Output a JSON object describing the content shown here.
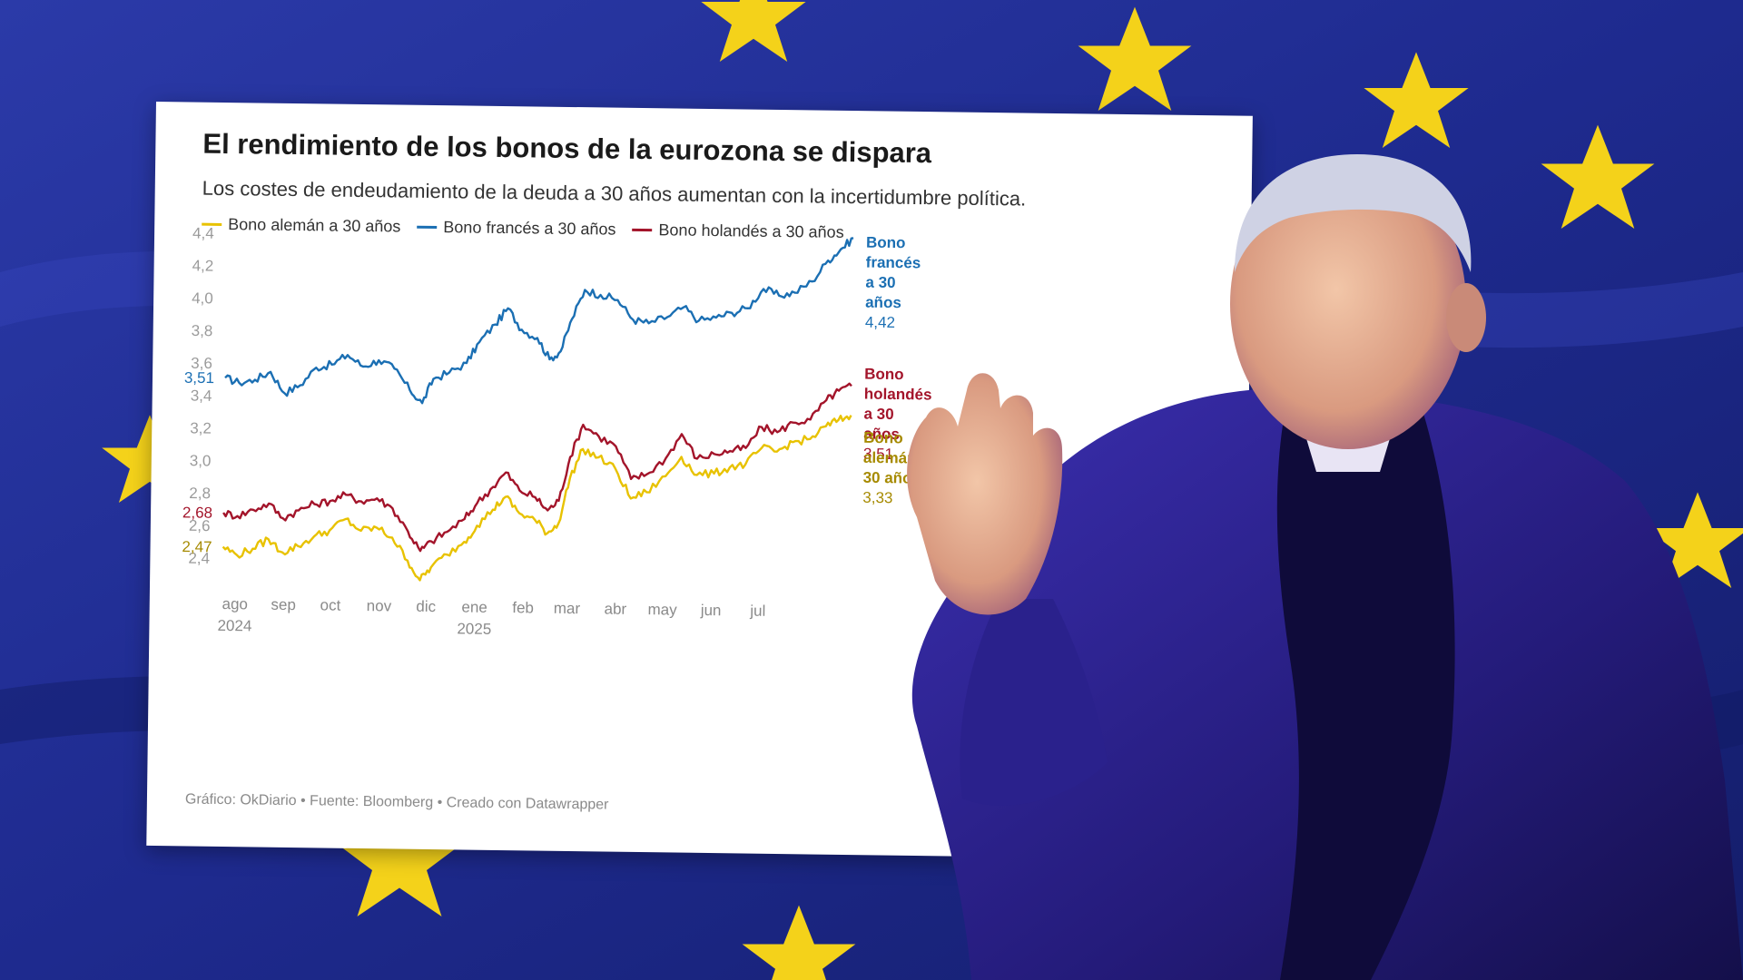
{
  "colors": {
    "german": "#e8c200",
    "german_label": "#a68a00",
    "french": "#1b6fb3",
    "dutch": "#a3142a"
  },
  "background": {
    "subject": "EU flag backdrop with a waving man in a dark suit and scarf"
  },
  "chart_data": {
    "type": "line",
    "title": "El rendimiento de los bonos de la eurozona se dispara",
    "subtitle": "Los costes de endeudamiento de la deuda a 30 años aumentan con la incertidumbre política.",
    "legend": [
      "Bono alemán a 30 años",
      "Bono francés a 30 años",
      "Bono holandés a 30 años"
    ],
    "ylim": [
      2.3,
      4.45
    ],
    "yticks": [
      "4,4",
      "4,2",
      "4,0",
      "3,8",
      "3,6",
      "3,4",
      "3,2",
      "3,0",
      "2,8",
      "2,6",
      "2,4"
    ],
    "ytick_values": [
      4.4,
      4.2,
      4.0,
      3.8,
      3.6,
      3.4,
      3.2,
      3.0,
      2.8,
      2.6,
      2.4
    ],
    "xticks": [
      {
        "label": "ago",
        "year": "2024"
      },
      {
        "label": "sep",
        "year": ""
      },
      {
        "label": "oct",
        "year": ""
      },
      {
        "label": "nov",
        "year": ""
      },
      {
        "label": "dic",
        "year": ""
      },
      {
        "label": "ene",
        "year": "2025"
      },
      {
        "label": "feb",
        "year": ""
      },
      {
        "label": "mar",
        "year": ""
      },
      {
        "label": "abr",
        "year": ""
      },
      {
        "label": "may",
        "year": ""
      },
      {
        "label": "jun",
        "year": ""
      },
      {
        "label": "jul",
        "year": ""
      }
    ],
    "x_range": [
      "2024-08-01",
      "2025-09-05"
    ],
    "series": [
      {
        "key": "french",
        "name": "Bono francés a 30 años",
        "points": [
          [
            "2024-08-01",
            3.51
          ],
          [
            "2024-08-10",
            3.48
          ],
          [
            "2024-08-20",
            3.5
          ],
          [
            "2024-08-30",
            3.55
          ],
          [
            "2024-09-08",
            3.42
          ],
          [
            "2024-09-18",
            3.47
          ],
          [
            "2024-09-28",
            3.58
          ],
          [
            "2024-10-08",
            3.6
          ],
          [
            "2024-10-18",
            3.66
          ],
          [
            "2024-10-28",
            3.59
          ],
          [
            "2024-11-07",
            3.63
          ],
          [
            "2024-11-17",
            3.58
          ],
          [
            "2024-11-27",
            3.45
          ],
          [
            "2024-12-05",
            3.37
          ],
          [
            "2024-12-12",
            3.52
          ],
          [
            "2024-12-22",
            3.56
          ],
          [
            "2025-01-02",
            3.62
          ],
          [
            "2025-01-10",
            3.75
          ],
          [
            "2025-01-20",
            3.86
          ],
          [
            "2025-01-28",
            3.96
          ],
          [
            "2025-02-06",
            3.83
          ],
          [
            "2025-02-16",
            3.78
          ],
          [
            "2025-02-24",
            3.65
          ],
          [
            "2025-03-03",
            3.7
          ],
          [
            "2025-03-10",
            3.9
          ],
          [
            "2025-03-18",
            4.08
          ],
          [
            "2025-03-28",
            4.05
          ],
          [
            "2025-04-08",
            4.02
          ],
          [
            "2025-04-18",
            3.9
          ],
          [
            "2025-04-28",
            3.88
          ],
          [
            "2025-05-10",
            3.92
          ],
          [
            "2025-05-20",
            3.98
          ],
          [
            "2025-05-30",
            3.9
          ],
          [
            "2025-06-10",
            3.92
          ],
          [
            "2025-06-20",
            3.95
          ],
          [
            "2025-06-30",
            3.98
          ],
          [
            "2025-07-10",
            4.1
          ],
          [
            "2025-07-20",
            4.06
          ],
          [
            "2025-07-30",
            4.08
          ],
          [
            "2025-08-10",
            4.15
          ],
          [
            "2025-08-20",
            4.28
          ],
          [
            "2025-08-28",
            4.35
          ],
          [
            "2025-09-05",
            4.42
          ]
        ],
        "start_label": "3,51",
        "end_label": [
          "Bono",
          "francés",
          "a 30",
          "años"
        ],
        "end_value": "4,42"
      },
      {
        "key": "dutch",
        "name": "Bono holandés a 30 años",
        "points": [
          [
            "2024-08-01",
            2.68
          ],
          [
            "2024-08-10",
            2.66
          ],
          [
            "2024-08-20",
            2.7
          ],
          [
            "2024-08-30",
            2.74
          ],
          [
            "2024-09-08",
            2.65
          ],
          [
            "2024-09-18",
            2.7
          ],
          [
            "2024-09-28",
            2.74
          ],
          [
            "2024-10-08",
            2.76
          ],
          [
            "2024-10-18",
            2.8
          ],
          [
            "2024-10-28",
            2.76
          ],
          [
            "2024-11-07",
            2.78
          ],
          [
            "2024-11-17",
            2.72
          ],
          [
            "2024-11-27",
            2.58
          ],
          [
            "2024-12-05",
            2.46
          ],
          [
            "2024-12-12",
            2.52
          ],
          [
            "2024-12-22",
            2.58
          ],
          [
            "2025-01-02",
            2.66
          ],
          [
            "2025-01-10",
            2.76
          ],
          [
            "2025-01-20",
            2.86
          ],
          [
            "2025-01-28",
            2.95
          ],
          [
            "2025-02-06",
            2.84
          ],
          [
            "2025-02-16",
            2.8
          ],
          [
            "2025-02-24",
            2.72
          ],
          [
            "2025-03-03",
            2.78
          ],
          [
            "2025-03-10",
            3.05
          ],
          [
            "2025-03-18",
            3.25
          ],
          [
            "2025-03-28",
            3.18
          ],
          [
            "2025-04-08",
            3.12
          ],
          [
            "2025-04-18",
            2.92
          ],
          [
            "2025-04-28",
            2.95
          ],
          [
            "2025-05-10",
            3.05
          ],
          [
            "2025-05-20",
            3.2
          ],
          [
            "2025-05-30",
            3.05
          ],
          [
            "2025-06-10",
            3.08
          ],
          [
            "2025-06-20",
            3.1
          ],
          [
            "2025-06-30",
            3.12
          ],
          [
            "2025-07-10",
            3.25
          ],
          [
            "2025-07-20",
            3.22
          ],
          [
            "2025-07-30",
            3.28
          ],
          [
            "2025-08-10",
            3.3
          ],
          [
            "2025-08-20",
            3.42
          ],
          [
            "2025-08-28",
            3.48
          ],
          [
            "2025-09-05",
            3.51
          ]
        ],
        "start_label": "2,68",
        "end_label": [
          "Bono",
          "holandés",
          "a 30",
          "años"
        ],
        "end_value": "3,51"
      },
      {
        "key": "german",
        "name": "Bono alemán a 30 años",
        "points": [
          [
            "2024-08-01",
            2.47
          ],
          [
            "2024-08-10",
            2.42
          ],
          [
            "2024-08-20",
            2.46
          ],
          [
            "2024-08-30",
            2.52
          ],
          [
            "2024-09-08",
            2.44
          ],
          [
            "2024-09-18",
            2.48
          ],
          [
            "2024-09-28",
            2.54
          ],
          [
            "2024-10-08",
            2.58
          ],
          [
            "2024-10-18",
            2.65
          ],
          [
            "2024-10-28",
            2.58
          ],
          [
            "2024-11-07",
            2.6
          ],
          [
            "2024-11-17",
            2.54
          ],
          [
            "2024-11-27",
            2.4
          ],
          [
            "2024-12-05",
            2.28
          ],
          [
            "2024-12-12",
            2.36
          ],
          [
            "2024-12-22",
            2.44
          ],
          [
            "2025-01-02",
            2.52
          ],
          [
            "2025-01-10",
            2.62
          ],
          [
            "2025-01-20",
            2.72
          ],
          [
            "2025-01-28",
            2.8
          ],
          [
            "2025-02-06",
            2.7
          ],
          [
            "2025-02-16",
            2.66
          ],
          [
            "2025-02-24",
            2.58
          ],
          [
            "2025-03-03",
            2.64
          ],
          [
            "2025-03-10",
            2.92
          ],
          [
            "2025-03-18",
            3.1
          ],
          [
            "2025-03-28",
            3.05
          ],
          [
            "2025-04-08",
            2.98
          ],
          [
            "2025-04-18",
            2.8
          ],
          [
            "2025-04-28",
            2.84
          ],
          [
            "2025-05-10",
            2.94
          ],
          [
            "2025-05-20",
            3.06
          ],
          [
            "2025-05-30",
            2.95
          ],
          [
            "2025-06-10",
            2.96
          ],
          [
            "2025-06-20",
            3.0
          ],
          [
            "2025-06-30",
            3.02
          ],
          [
            "2025-07-10",
            3.12
          ],
          [
            "2025-07-20",
            3.1
          ],
          [
            "2025-07-30",
            3.16
          ],
          [
            "2025-08-10",
            3.18
          ],
          [
            "2025-08-20",
            3.26
          ],
          [
            "2025-08-28",
            3.3
          ],
          [
            "2025-09-05",
            3.33
          ]
        ],
        "start_label": "2,47",
        "end_label": [
          "Bono",
          "alemán a",
          "30 años"
        ],
        "end_value": "3,33"
      }
    ],
    "footer": "Gráfico: OkDiario  • Fuente: Bloomberg • Creado con Datawrapper"
  }
}
